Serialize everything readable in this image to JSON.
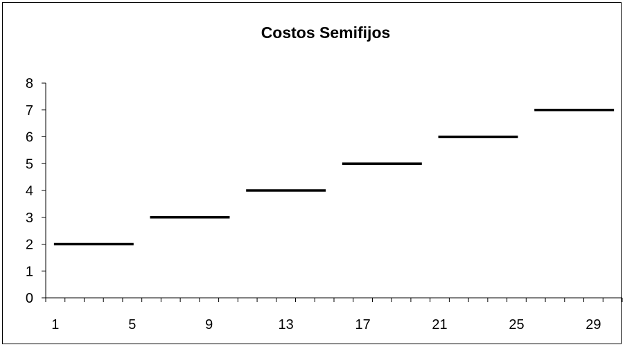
{
  "chart_data": {
    "type": "line",
    "title": "Costos Semifijos",
    "xlabel": "",
    "ylabel": "",
    "x": [
      1,
      2,
      3,
      4,
      5,
      6,
      7,
      8,
      9,
      10,
      11,
      12,
      13,
      14,
      15,
      16,
      17,
      18,
      19,
      20,
      21,
      22,
      23,
      24,
      25,
      26,
      27,
      28,
      29,
      30
    ],
    "series": [
      {
        "values": [
          2,
          2,
          2,
          2,
          2,
          3,
          3,
          3,
          3,
          3,
          4,
          4,
          4,
          4,
          4,
          5,
          5,
          5,
          5,
          5,
          6,
          6,
          6,
          6,
          6,
          7,
          7,
          7,
          7,
          7
        ]
      }
    ],
    "x_tick_labels": [
      "1",
      "5",
      "9",
      "13",
      "17",
      "21",
      "25",
      "29"
    ],
    "y_tick_labels": [
      "0",
      "1",
      "2",
      "3",
      "4",
      "5",
      "6",
      "7",
      "8"
    ],
    "ylim": [
      0,
      8
    ],
    "grid": false,
    "legend": "none",
    "colors": {
      "series": "#000000",
      "axis": "#000000",
      "background": "#ffffff"
    }
  }
}
